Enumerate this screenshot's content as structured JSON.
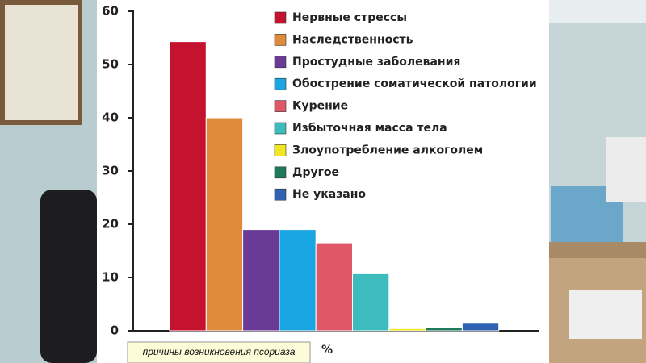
{
  "chart_data": {
    "type": "bar",
    "categories": [
      "Нервные стрессы",
      "Наследственность",
      "Простудные заболевания",
      "Обострение соматической патологии",
      "Курение",
      "Избыточная масса тела",
      "Злоупотребление алкоголем",
      "Другое",
      "Не указано"
    ],
    "values": [
      54.3,
      40,
      19,
      19,
      16.5,
      10.7,
      0.4,
      0.6,
      1.4
    ],
    "colors": [
      "#c4122f",
      "#e08a3c",
      "#6b3a96",
      "#1aa6e2",
      "#e05768",
      "#3cbcbc",
      "#f2e61e",
      "#1e7a5a",
      "#2f62b3"
    ],
    "ylim": [
      0,
      60
    ],
    "yticks": [
      0,
      10,
      20,
      30,
      40,
      50,
      60
    ],
    "xlabel": "причины возникновения псориаза",
    "ylabel": "%"
  }
}
